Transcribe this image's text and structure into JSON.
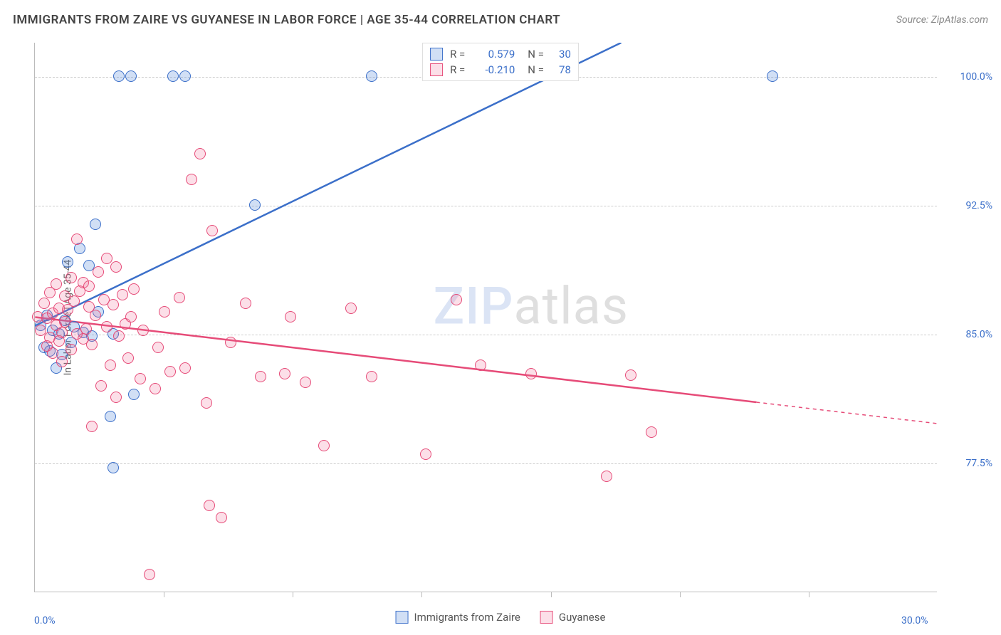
{
  "header": {
    "title": "IMMIGRANTS FROM ZAIRE VS GUYANESE IN LABOR FORCE | AGE 35-44 CORRELATION CHART",
    "source": "Source: ZipAtlas.com"
  },
  "watermark": {
    "zip": "ZIP",
    "atlas": "atlas"
  },
  "chart": {
    "type": "scatter-with-regression",
    "background_color": "#ffffff",
    "grid_color": "#cccccc",
    "axis_color": "#bbbbbb",
    "tick_label_color": "#3b6fc9",
    "ylabel": "In Labor Force | Age 35-44",
    "ylabel_color": "#666666",
    "xlim": [
      0.0,
      30.0
    ],
    "ylim": [
      70.0,
      102.0
    ],
    "xticks": [
      0.0,
      30.0
    ],
    "xtick_labels": [
      "0.0%",
      "30.0%"
    ],
    "yticks": [
      77.5,
      85.0,
      92.5,
      100.0
    ],
    "ytick_labels": [
      "77.5%",
      "85.0%",
      "92.5%",
      "100.0%"
    ],
    "minor_xticks_count": 6,
    "series": [
      {
        "name": "Immigrants from Zaire",
        "key": "zaire",
        "color_stroke": "#3b6fc9",
        "color_fill": "rgba(90,140,220,0.28)",
        "R": "0.579",
        "N": "30",
        "regression": {
          "x1": 0.0,
          "y1": 85.5,
          "x2": 19.5,
          "y2": 102.0,
          "solid_to_x": 19.5
        },
        "points": [
          [
            0.2,
            85.5
          ],
          [
            0.3,
            84.2
          ],
          [
            0.4,
            86.1
          ],
          [
            0.5,
            84.0
          ],
          [
            0.6,
            85.2
          ],
          [
            0.7,
            83.0
          ],
          [
            0.8,
            85.0
          ],
          [
            0.9,
            83.8
          ],
          [
            1.0,
            85.8
          ],
          [
            1.1,
            89.2
          ],
          [
            1.2,
            84.5
          ],
          [
            1.3,
            85.4
          ],
          [
            1.5,
            90.0
          ],
          [
            1.6,
            85.1
          ],
          [
            1.8,
            89.0
          ],
          [
            1.9,
            84.9
          ],
          [
            2.0,
            91.4
          ],
          [
            2.1,
            86.3
          ],
          [
            2.5,
            80.2
          ],
          [
            2.6,
            85.0
          ],
          [
            2.6,
            77.2
          ],
          [
            2.8,
            100.0
          ],
          [
            3.2,
            100.0
          ],
          [
            3.3,
            81.5
          ],
          [
            4.6,
            100.0
          ],
          [
            5.0,
            100.0
          ],
          [
            7.3,
            92.5
          ],
          [
            11.2,
            100.0
          ],
          [
            24.5,
            100.0
          ]
        ]
      },
      {
        "name": "Guyanese",
        "key": "guyanese",
        "color_stroke": "#e64b78",
        "color_fill": "rgba(240,110,150,0.22)",
        "R": "-0.210",
        "N": "78",
        "regression": {
          "x1": 0.0,
          "y1": 86.0,
          "x2": 30.0,
          "y2": 79.8,
          "solid_to_x": 24.0
        },
        "points": [
          [
            0.1,
            86.0
          ],
          [
            0.2,
            85.2
          ],
          [
            0.3,
            86.8
          ],
          [
            0.4,
            84.3
          ],
          [
            0.4,
            85.9
          ],
          [
            0.5,
            87.4
          ],
          [
            0.5,
            84.8
          ],
          [
            0.6,
            86.2
          ],
          [
            0.6,
            83.9
          ],
          [
            0.7,
            85.5
          ],
          [
            0.7,
            87.9
          ],
          [
            0.8,
            84.6
          ],
          [
            0.8,
            86.5
          ],
          [
            0.9,
            85.1
          ],
          [
            0.9,
            83.4
          ],
          [
            1.0,
            87.2
          ],
          [
            1.0,
            85.7
          ],
          [
            1.1,
            86.4
          ],
          [
            1.2,
            88.3
          ],
          [
            1.2,
            84.1
          ],
          [
            1.3,
            86.9
          ],
          [
            1.4,
            85.0
          ],
          [
            1.4,
            90.5
          ],
          [
            1.5,
            87.5
          ],
          [
            1.6,
            84.7
          ],
          [
            1.6,
            88.0
          ],
          [
            1.7,
            85.3
          ],
          [
            1.8,
            86.6
          ],
          [
            1.8,
            87.8
          ],
          [
            1.9,
            84.4
          ],
          [
            1.9,
            79.6
          ],
          [
            2.0,
            86.1
          ],
          [
            2.1,
            88.6
          ],
          [
            2.2,
            82.0
          ],
          [
            2.3,
            87.0
          ],
          [
            2.4,
            85.4
          ],
          [
            2.4,
            89.4
          ],
          [
            2.5,
            83.2
          ],
          [
            2.6,
            86.7
          ],
          [
            2.7,
            81.3
          ],
          [
            2.7,
            88.9
          ],
          [
            2.8,
            84.9
          ],
          [
            2.9,
            87.3
          ],
          [
            3.0,
            85.6
          ],
          [
            3.1,
            83.6
          ],
          [
            3.2,
            86.0
          ],
          [
            3.3,
            87.6
          ],
          [
            3.5,
            82.4
          ],
          [
            3.6,
            85.2
          ],
          [
            3.8,
            71.0
          ],
          [
            4.0,
            81.8
          ],
          [
            4.1,
            84.2
          ],
          [
            4.3,
            86.3
          ],
          [
            4.5,
            82.8
          ],
          [
            4.8,
            87.1
          ],
          [
            5.0,
            83.0
          ],
          [
            5.2,
            94.0
          ],
          [
            5.5,
            95.5
          ],
          [
            5.7,
            81.0
          ],
          [
            5.8,
            75.0
          ],
          [
            5.9,
            91.0
          ],
          [
            6.2,
            74.3
          ],
          [
            6.5,
            84.5
          ],
          [
            7.0,
            86.8
          ],
          [
            7.5,
            82.5
          ],
          [
            8.3,
            82.7
          ],
          [
            8.5,
            86.0
          ],
          [
            9.0,
            82.2
          ],
          [
            9.6,
            78.5
          ],
          [
            10.5,
            86.5
          ],
          [
            11.2,
            82.5
          ],
          [
            13.0,
            78.0
          ],
          [
            14.0,
            87.0
          ],
          [
            14.8,
            83.2
          ],
          [
            16.5,
            82.7
          ],
          [
            19.0,
            76.7
          ],
          [
            19.8,
            82.6
          ],
          [
            20.5,
            79.3
          ]
        ]
      }
    ],
    "legend_stats_labels": {
      "R": "R =",
      "N": "N ="
    }
  },
  "bottom_legend": {
    "items": [
      {
        "label": "Immigrants from Zaire",
        "stroke": "#3b6fc9",
        "fill": "rgba(90,140,220,0.28)"
      },
      {
        "label": "Guyanese",
        "stroke": "#e64b78",
        "fill": "rgba(240,110,150,0.22)"
      }
    ]
  }
}
